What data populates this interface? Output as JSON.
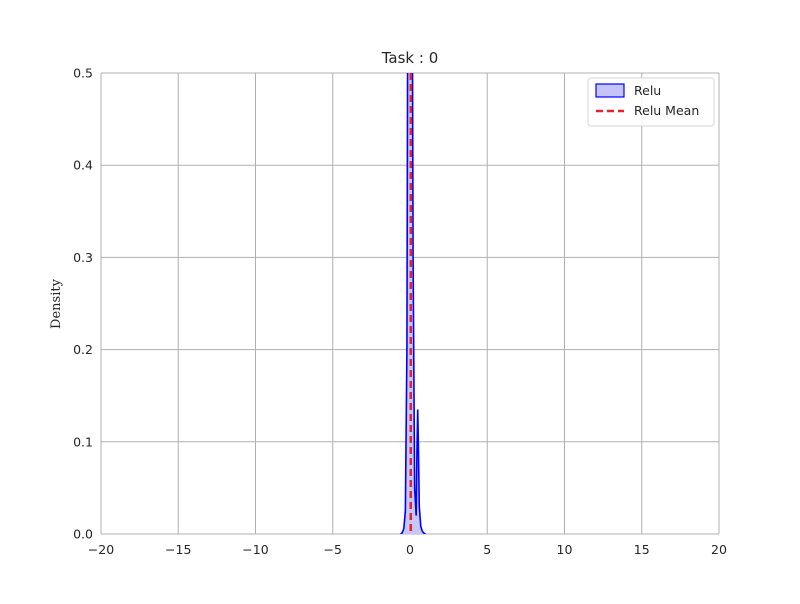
{
  "chart_data": {
    "type": "area",
    "title": "Task : 0",
    "xlabel": "",
    "ylabel": "Density",
    "xlim": [
      -20,
      20
    ],
    "ylim": [
      0,
      0.5
    ],
    "x_ticks": [
      -20,
      -15,
      -10,
      -5,
      0,
      5,
      10,
      15,
      20
    ],
    "x_tick_labels": [
      "−20",
      "−15",
      "−10",
      "−5",
      "0",
      "5",
      "10",
      "15",
      "20"
    ],
    "y_ticks": [
      0.0,
      0.1,
      0.2,
      0.3,
      0.4,
      0.5
    ],
    "y_tick_labels": [
      "0.0",
      "0.1",
      "0.2",
      "0.3",
      "0.4",
      "0.5"
    ],
    "grid": true,
    "legend_position": "top-right",
    "series": [
      {
        "name": "Relu",
        "kind": "density",
        "color": "#0000ff",
        "fill": "#c4c4f8",
        "x": [
          -0.6,
          -0.5,
          -0.4,
          -0.3,
          -0.2,
          -0.15,
          -0.1,
          -0.05,
          0.0,
          0.05,
          0.1,
          0.15,
          0.2,
          0.3,
          0.4,
          0.45,
          0.5,
          0.55,
          0.6,
          0.7,
          0.8,
          0.9,
          1.0
        ],
        "y": [
          0.0,
          0.0015,
          0.006,
          0.025,
          0.2,
          0.55,
          0.62,
          0.62,
          0.62,
          0.62,
          0.62,
          0.58,
          0.3,
          0.05,
          0.02,
          0.09,
          0.135,
          0.09,
          0.03,
          0.008,
          0.003,
          0.001,
          0.0
        ]
      }
    ],
    "vlines": [
      {
        "name": "Relu Mean",
        "x": 0.05,
        "color": "#e8202a",
        "style": "dashed"
      }
    ]
  }
}
